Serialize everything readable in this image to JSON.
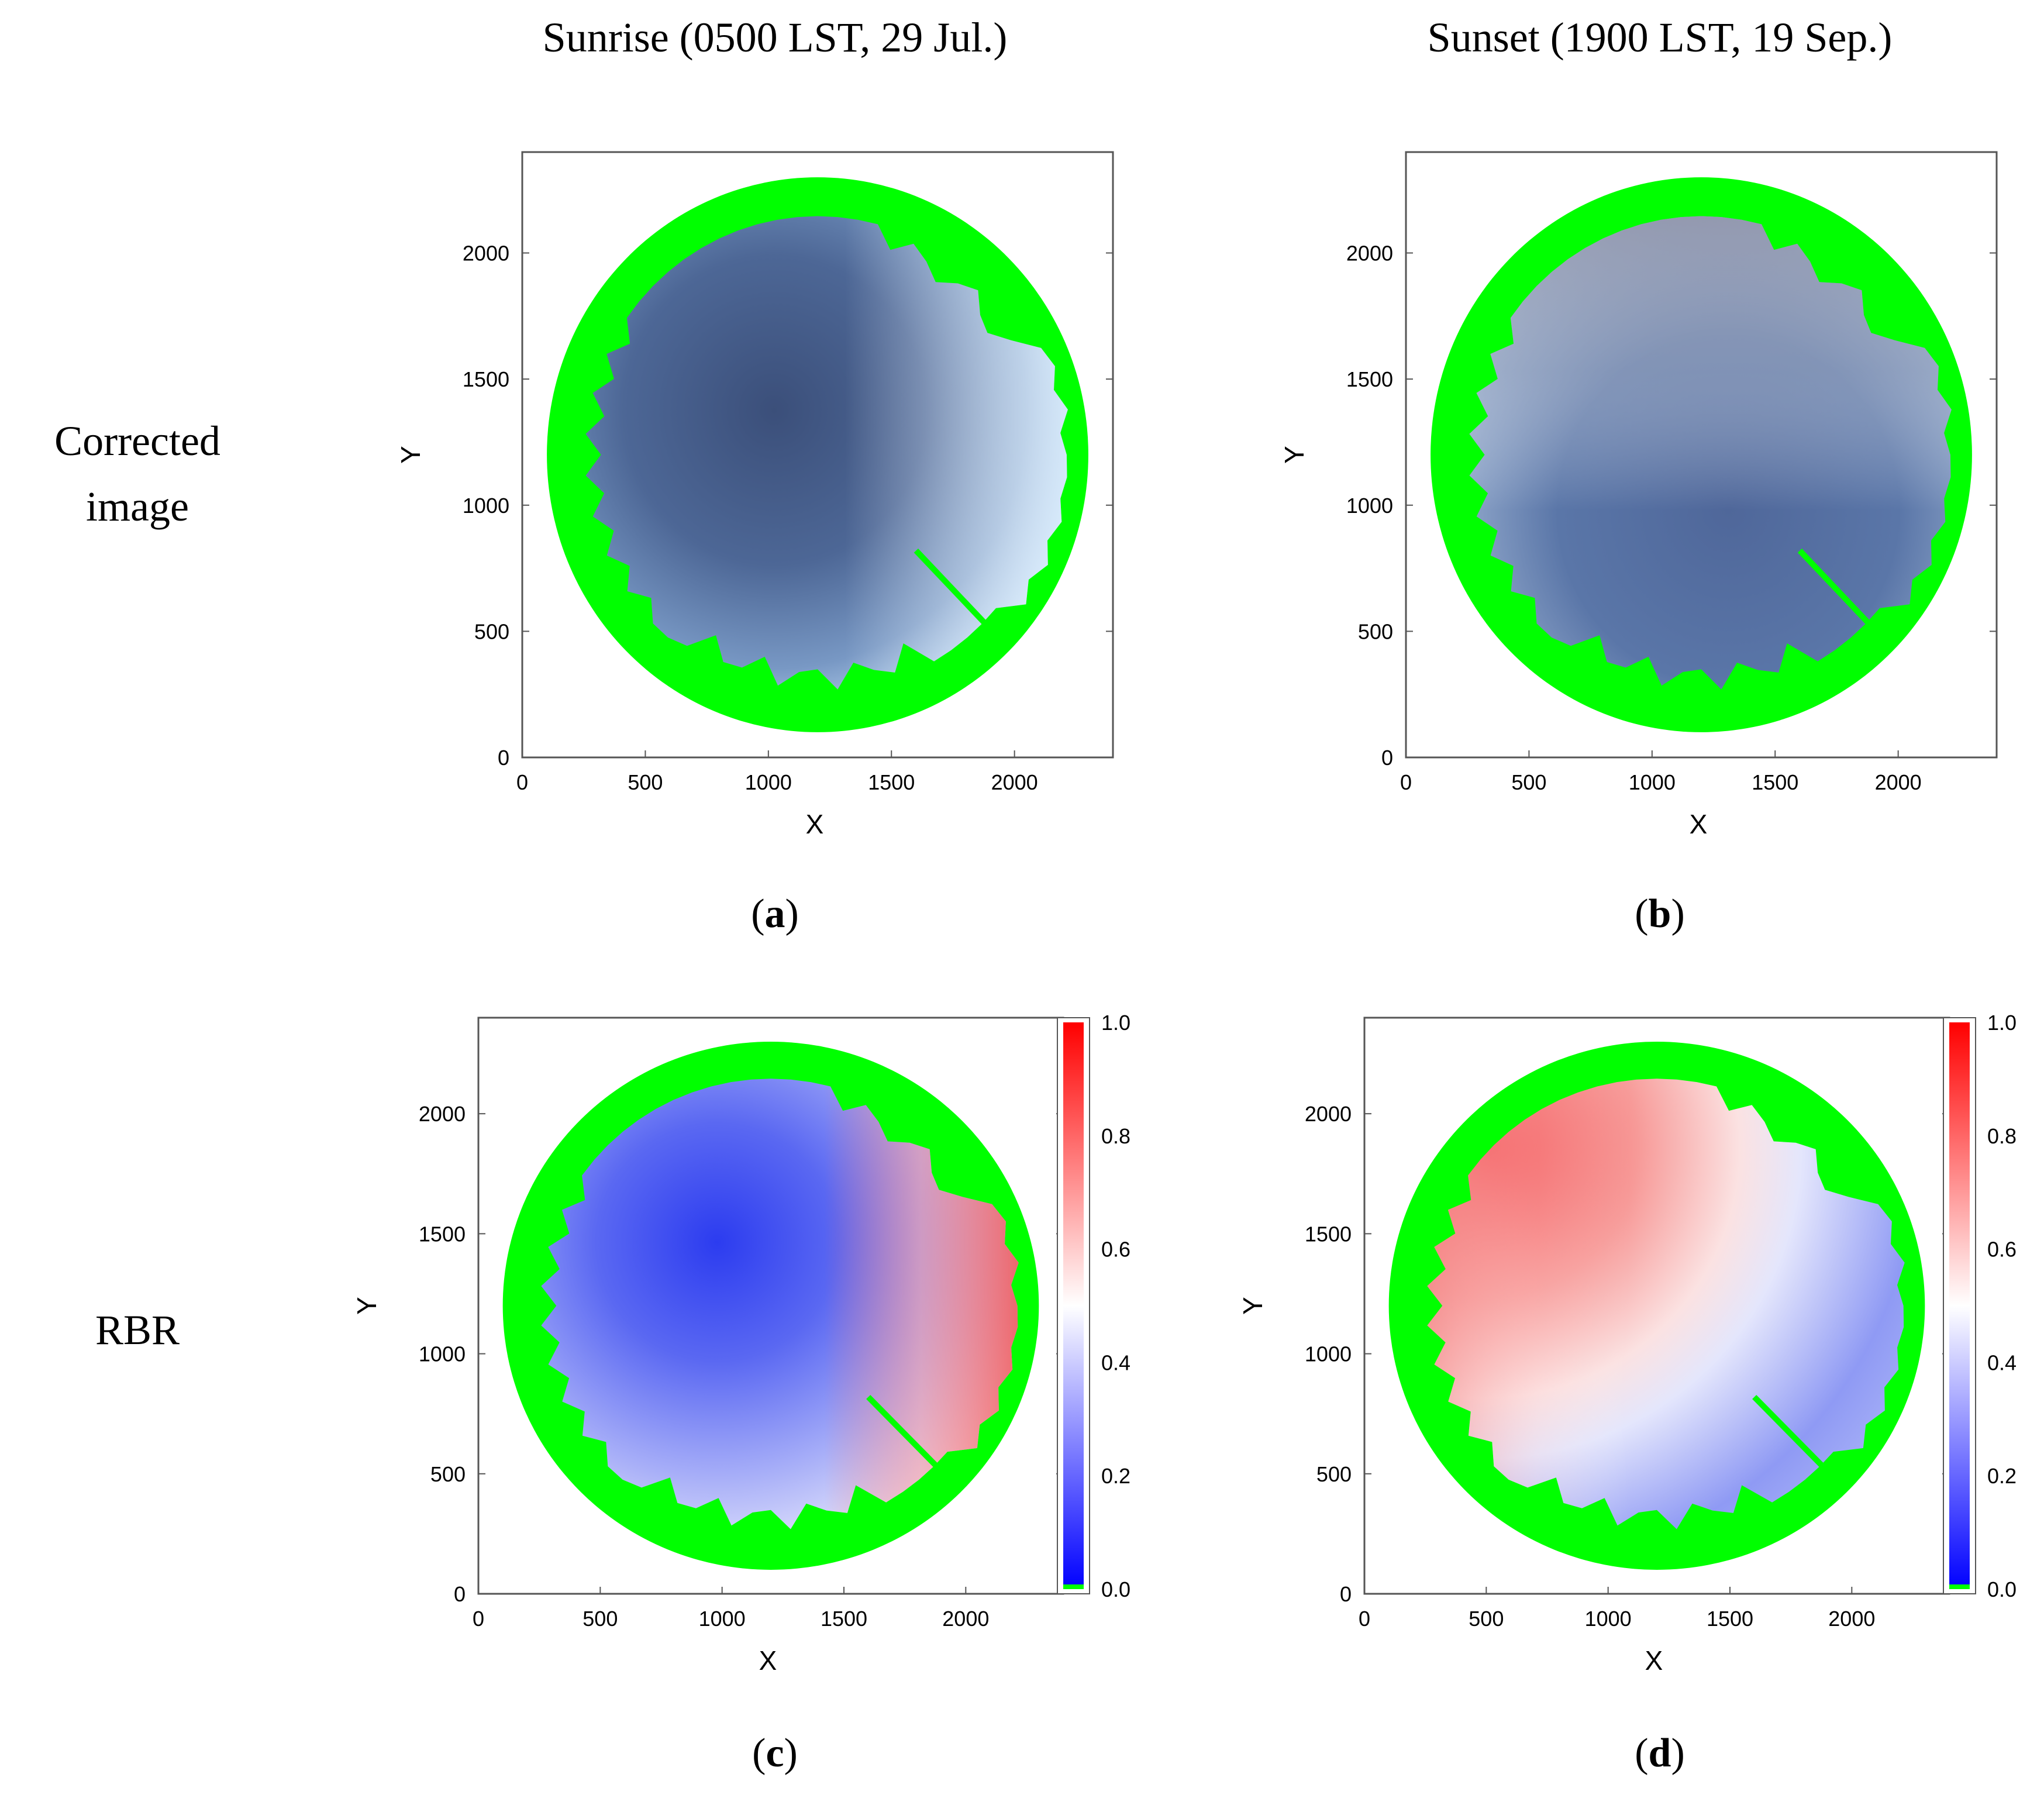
{
  "figure": {
    "column_titles": [
      "Sunrise (0500 LST, 29 Jul.)",
      "Sunset (1900 LST, 19 Sep.)"
    ],
    "row_labels": [
      [
        "Corrected",
        "image"
      ],
      [
        "RBR"
      ]
    ],
    "panel_labels": [
      {
        "open": "(",
        "letter": "a",
        "close": ")"
      },
      {
        "open": "(",
        "letter": "b",
        "close": ")"
      },
      {
        "open": "(",
        "letter": "c",
        "close": ")"
      },
      {
        "open": "(",
        "letter": "d",
        "close": ")"
      }
    ]
  },
  "colors": {
    "mask_green": "#00ff00",
    "sky_sunrise_center": "#3b4f7a",
    "sky_sunrise_edge": "#cfe8ff",
    "sky_sunset_top": "#8c8ea3",
    "sky_sunset_center": "#516a9a",
    "sky_sunset_edge": "#d7e4f2",
    "rbr_low": "#0000ff",
    "rbr_mid": "#ffffff",
    "rbr_high": "#ff0000"
  },
  "chart_data": [
    {
      "type": "heatmap",
      "panel": "a",
      "title": "Sunrise (0500 LST, 29 Jul.)",
      "content": "Corrected image",
      "xlabel": "X",
      "ylabel": "Y",
      "xlim": [
        0,
        2400
      ],
      "ylim": [
        0,
        2400
      ],
      "xticks": [
        0,
        500,
        1000,
        1500,
        2000
      ],
      "yticks": [
        0,
        500,
        1000,
        1500,
        2000
      ],
      "grid": false,
      "circle_center": [
        1200,
        1200
      ],
      "circle_radius": 1100
    },
    {
      "type": "heatmap",
      "panel": "b",
      "title": "Sunset (1900 LST, 19 Sep.)",
      "content": "Corrected image",
      "xlabel": "X",
      "ylabel": "Y",
      "xlim": [
        0,
        2400
      ],
      "ylim": [
        0,
        2400
      ],
      "xticks": [
        0,
        500,
        1000,
        1500,
        2000
      ],
      "yticks": [
        0,
        500,
        1000,
        1500,
        2000
      ],
      "grid": false,
      "circle_center": [
        1200,
        1200
      ],
      "circle_radius": 1100
    },
    {
      "type": "heatmap",
      "panel": "c",
      "title": "Sunrise (0500 LST, 29 Jul.)",
      "content": "RBR",
      "xlabel": "X",
      "ylabel": "Y",
      "xlim": [
        0,
        2400
      ],
      "ylim": [
        0,
        2400
      ],
      "xticks": [
        0,
        500,
        1000,
        1500,
        2000
      ],
      "yticks": [
        0,
        500,
        1000,
        1500,
        2000
      ],
      "grid": false,
      "circle_center": [
        1200,
        1200
      ],
      "circle_radius": 1100,
      "colorbar": {
        "range": [
          0.0,
          1.0
        ],
        "ticks": [
          "0.0",
          "0.2",
          "0.4",
          "0.6",
          "0.8",
          "1.0"
        ]
      }
    },
    {
      "type": "heatmap",
      "panel": "d",
      "title": "Sunset (1900 LST, 19 Sep.)",
      "content": "RBR",
      "xlabel": "X",
      "ylabel": "Y",
      "xlim": [
        0,
        2400
      ],
      "ylim": [
        0,
        2400
      ],
      "xticks": [
        0,
        500,
        1000,
        1500,
        2000
      ],
      "yticks": [
        0,
        500,
        1000,
        1500,
        2000
      ],
      "grid": false,
      "circle_center": [
        1200,
        1200
      ],
      "circle_radius": 1100,
      "colorbar": {
        "range": [
          0.0,
          1.0
        ],
        "ticks": [
          "0.0",
          "0.2",
          "0.4",
          "0.6",
          "0.8",
          "1.0"
        ]
      }
    }
  ]
}
